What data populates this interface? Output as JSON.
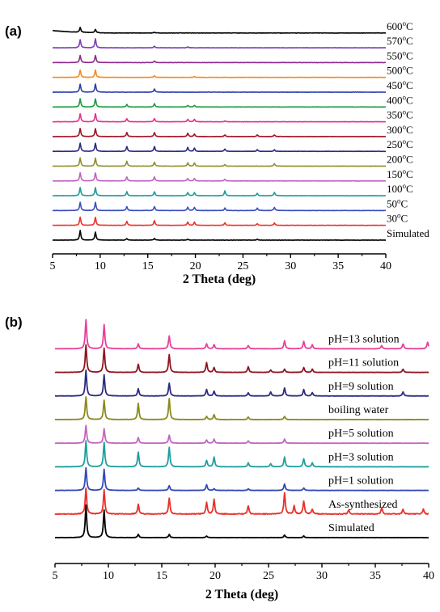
{
  "chart_data": [
    {
      "type": "line",
      "panel_label": "(a)",
      "xlabel": "2 Theta (deg)",
      "ylabel": "",
      "xlim": [
        5,
        40
      ],
      "xticks": [
        "5",
        "10",
        "15",
        "20",
        "25",
        "30",
        "35",
        "40"
      ],
      "label_placement": "right, above each trace",
      "grid": false,
      "series": [
        {
          "name": "600°C",
          "temp": "600",
          "color": "#000000",
          "noise": 0.5,
          "peaks": [
            [
              7.9,
              6
            ],
            [
              9.5,
              4
            ],
            [
              15.7,
              1
            ]
          ]
        },
        {
          "name": "570°C",
          "temp": "570",
          "color": "#7b3fb0",
          "peaks": [
            [
              7.9,
              10
            ],
            [
              9.5,
              11
            ],
            [
              15.7,
              2
            ],
            [
              19.2,
              1
            ]
          ]
        },
        {
          "name": "550°C",
          "temp": "550",
          "color": "#8e2a8e",
          "peaks": [
            [
              7.9,
              9
            ],
            [
              9.5,
              9
            ],
            [
              15.7,
              2
            ]
          ]
        },
        {
          "name": "500°C",
          "temp": "500",
          "color": "#f28a1d",
          "peaks": [
            [
              7.9,
              9
            ],
            [
              9.5,
              9
            ],
            [
              15.7,
              2
            ],
            [
              19.9,
              1
            ]
          ]
        },
        {
          "name": "450°C",
          "temp": "450",
          "color": "#2a3fae",
          "peaks": [
            [
              7.9,
              10
            ],
            [
              9.5,
              10
            ],
            [
              15.7,
              4
            ]
          ]
        },
        {
          "name": "400°C",
          "temp": "400",
          "color": "#1a9b3f",
          "peaks": [
            [
              7.9,
              10
            ],
            [
              9.5,
              10
            ],
            [
              12.8,
              3
            ],
            [
              15.7,
              4
            ],
            [
              19.2,
              2
            ],
            [
              19.9,
              2
            ]
          ]
        },
        {
          "name": "350°C",
          "temp": "350",
          "color": "#e3308f",
          "peaks": [
            [
              7.9,
              10
            ],
            [
              9.5,
              10
            ],
            [
              12.8,
              4
            ],
            [
              15.7,
              4
            ],
            [
              19.2,
              3
            ],
            [
              19.9,
              3
            ],
            [
              23.1,
              1
            ]
          ]
        },
        {
          "name": "300°C",
          "temp": "300",
          "color": "#a01222",
          "peaks": [
            [
              7.9,
              10
            ],
            [
              9.5,
              10
            ],
            [
              12.8,
              5
            ],
            [
              15.7,
              5
            ],
            [
              19.2,
              4
            ],
            [
              19.9,
              3
            ],
            [
              23.1,
              2
            ],
            [
              26.5,
              2
            ],
            [
              28.3,
              2
            ]
          ]
        },
        {
          "name": "250°C",
          "temp": "250",
          "color": "#2a2a7e",
          "peaks": [
            [
              7.9,
              10
            ],
            [
              9.5,
              10
            ],
            [
              12.8,
              6
            ],
            [
              15.7,
              6
            ],
            [
              19.2,
              5
            ],
            [
              19.9,
              4
            ],
            [
              23.1,
              3
            ],
            [
              26.5,
              2
            ],
            [
              28.3,
              2
            ]
          ]
        },
        {
          "name": "200°C",
          "temp": "200",
          "color": "#8f8f2a",
          "peaks": [
            [
              7.9,
              10
            ],
            [
              9.5,
              10
            ],
            [
              12.8,
              6
            ],
            [
              15.7,
              5
            ],
            [
              19.2,
              4
            ],
            [
              19.9,
              4
            ],
            [
              23.1,
              2
            ],
            [
              28.3,
              3
            ]
          ]
        },
        {
          "name": "150°C",
          "temp": "150",
          "color": "#c062c0",
          "peaks": [
            [
              7.9,
              10
            ],
            [
              9.5,
              10
            ],
            [
              12.8,
              5
            ],
            [
              15.7,
              5
            ],
            [
              19.2,
              3
            ],
            [
              19.9,
              3
            ],
            [
              23.1,
              2
            ]
          ]
        },
        {
          "name": "100°C",
          "temp": "100",
          "color": "#1e9a9a",
          "peaks": [
            [
              7.9,
              10
            ],
            [
              9.5,
              10
            ],
            [
              12.8,
              5
            ],
            [
              15.7,
              5
            ],
            [
              19.2,
              4
            ],
            [
              19.9,
              4
            ],
            [
              23.1,
              6
            ],
            [
              26.5,
              3
            ],
            [
              28.3,
              4
            ]
          ]
        },
        {
          "name": "50°C",
          "temp": "50",
          "color": "#3a4fbe",
          "peaks": [
            [
              7.9,
              10
            ],
            [
              9.5,
              10
            ],
            [
              12.8,
              5
            ],
            [
              15.7,
              5
            ],
            [
              19.2,
              4
            ],
            [
              19.9,
              4
            ],
            [
              23.1,
              3
            ],
            [
              26.5,
              3
            ],
            [
              28.3,
              4
            ]
          ]
        },
        {
          "name": "30°C",
          "temp": "30",
          "color": "#e8312a",
          "peaks": [
            [
              7.9,
              10
            ],
            [
              9.5,
              10
            ],
            [
              12.8,
              5
            ],
            [
              15.7,
              6
            ],
            [
              19.2,
              4
            ],
            [
              19.9,
              4
            ],
            [
              23.1,
              3
            ],
            [
              26.5,
              2
            ],
            [
              28.3,
              3
            ]
          ]
        },
        {
          "name": "Simulated",
          "temp": "",
          "color": "#000000",
          "peaks": [
            [
              7.9,
              12
            ],
            [
              9.5,
              10
            ],
            [
              12.8,
              2
            ],
            [
              15.7,
              2
            ],
            [
              19.2,
              1
            ],
            [
              26.5,
              1
            ]
          ]
        }
      ]
    },
    {
      "type": "line",
      "panel_label": "(b)",
      "xlabel": "2 Theta (deg)",
      "ylabel": "",
      "xlim": [
        5,
        40
      ],
      "xticks": [
        "5",
        "10",
        "15",
        "20",
        "25",
        "30",
        "35",
        "40"
      ],
      "label_placement": "right, above each trace",
      "grid": false,
      "series": [
        {
          "name": "pH=13 solution",
          "color": "#e83f9b",
          "peaks": [
            [
              7.9,
              36
            ],
            [
              9.6,
              30
            ],
            [
              12.8,
              6
            ],
            [
              15.7,
              16
            ],
            [
              19.2,
              6
            ],
            [
              19.9,
              5
            ],
            [
              23.1,
              4
            ],
            [
              26.5,
              10
            ],
            [
              28.3,
              9
            ],
            [
              29.1,
              5
            ],
            [
              35.6,
              4
            ],
            [
              37.6,
              6
            ],
            [
              39.9,
              8
            ]
          ]
        },
        {
          "name": "pH=11 solution",
          "color": "#8f1523",
          "peaks": [
            [
              7.9,
              34
            ],
            [
              9.6,
              30
            ],
            [
              12.8,
              10
            ],
            [
              15.7,
              22
            ],
            [
              19.2,
              12
            ],
            [
              19.9,
              6
            ],
            [
              23.1,
              7
            ],
            [
              25.2,
              3
            ],
            [
              26.5,
              4
            ],
            [
              28.3,
              6
            ],
            [
              29.1,
              4
            ],
            [
              37.6,
              4
            ]
          ]
        },
        {
          "name": "pH=9 solution",
          "color": "#2b2b80",
          "peaks": [
            [
              7.9,
              32
            ],
            [
              9.6,
              26
            ],
            [
              12.8,
              9
            ],
            [
              15.7,
              16
            ],
            [
              19.2,
              8
            ],
            [
              19.9,
              6
            ],
            [
              23.1,
              4
            ],
            [
              25.2,
              5
            ],
            [
              26.5,
              10
            ],
            [
              28.3,
              8
            ],
            [
              29.1,
              4
            ],
            [
              37.6,
              5
            ]
          ]
        },
        {
          "name": "boiling water",
          "color": "#8a8a1e",
          "peaks": [
            [
              7.9,
              28
            ],
            [
              9.6,
              24
            ],
            [
              12.8,
              20
            ],
            [
              15.7,
              26
            ],
            [
              19.2,
              4
            ],
            [
              19.9,
              6
            ],
            [
              23.1,
              3
            ],
            [
              26.5,
              4
            ]
          ]
        },
        {
          "name": "pH=5 solution",
          "color": "#c067c0",
          "peaks": [
            [
              7.9,
              22
            ],
            [
              9.6,
              18
            ],
            [
              12.8,
              7
            ],
            [
              15.7,
              10
            ],
            [
              19.2,
              4
            ],
            [
              19.9,
              5
            ],
            [
              23.1,
              3
            ],
            [
              26.5,
              5
            ]
          ]
        },
        {
          "name": "pH=3 solution",
          "color": "#1e9e9e",
          "peaks": [
            [
              7.9,
              32
            ],
            [
              9.6,
              30
            ],
            [
              12.8,
              18
            ],
            [
              15.7,
              24
            ],
            [
              19.2,
              8
            ],
            [
              19.9,
              12
            ],
            [
              23.1,
              5
            ],
            [
              25.2,
              4
            ],
            [
              26.5,
              12
            ],
            [
              28.3,
              10
            ],
            [
              29.1,
              5
            ]
          ]
        },
        {
          "name": "pH=1 solution",
          "color": "#3349b8",
          "peaks": [
            [
              7.9,
              28
            ],
            [
              9.6,
              26
            ],
            [
              12.8,
              3
            ],
            [
              15.7,
              6
            ],
            [
              19.2,
              7
            ],
            [
              19.9,
              2
            ],
            [
              23.1,
              2
            ],
            [
              26.5,
              8
            ],
            [
              28.3,
              3
            ]
          ]
        },
        {
          "name": "As-synthesized",
          "color": "#e8312a",
          "noise": 1,
          "peaks": [
            [
              7.9,
              32
            ],
            [
              9.6,
              30
            ],
            [
              12.8,
              12
            ],
            [
              15.7,
              20
            ],
            [
              19.2,
              14
            ],
            [
              19.9,
              18
            ],
            [
              23.1,
              10
            ],
            [
              26.5,
              26
            ],
            [
              27.4,
              10
            ],
            [
              28.3,
              16
            ],
            [
              29.1,
              6
            ],
            [
              32.5,
              5
            ],
            [
              35.6,
              8
            ],
            [
              37.6,
              6
            ],
            [
              39.5,
              6
            ]
          ]
        },
        {
          "name": "Simulated",
          "color": "#000000",
          "peaks": [
            [
              7.9,
              40
            ],
            [
              9.6,
              34
            ],
            [
              12.8,
              4
            ],
            [
              15.7,
              4
            ],
            [
              19.2,
              2
            ],
            [
              26.5,
              3
            ],
            [
              28.3,
              2
            ]
          ]
        }
      ]
    }
  ]
}
